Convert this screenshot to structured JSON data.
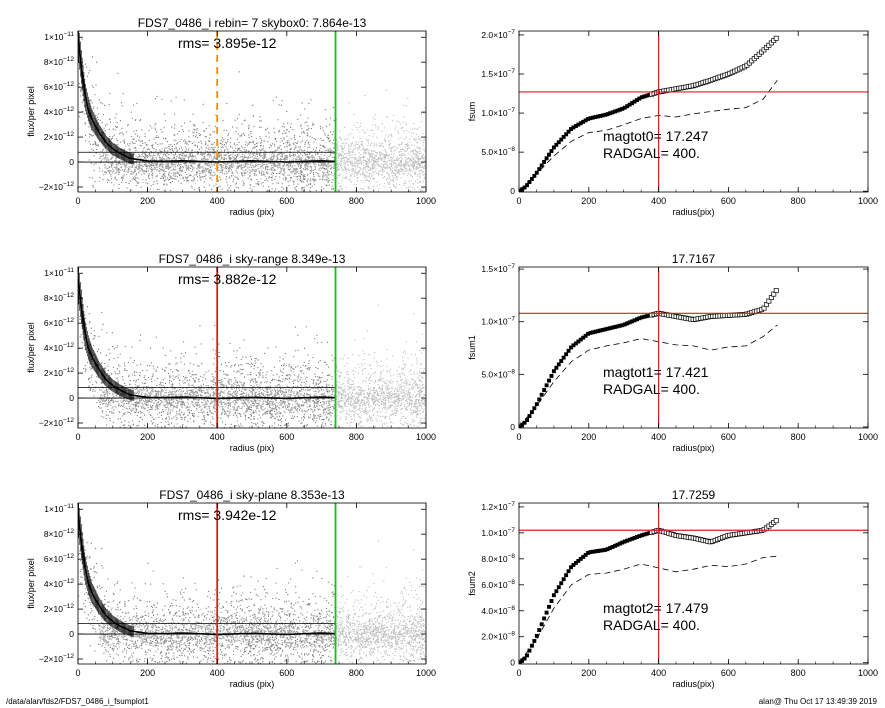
{
  "footer": {
    "left": "/data/alan/fds2/FDS7_0486_i_fsumplot1",
    "right": "alan@  Thu Oct 17 13:49:39 2019"
  },
  "chart_data": [
    {
      "type": "scatter",
      "id": "profile-1",
      "title": "FDS7_0486_i rebin= 7    skybox0:  7.864e-13",
      "annotation": "rms= 3.895e-12",
      "xlabel": "radius (pix)",
      "ylabel": "flux/per pixel",
      "xlim": [
        0,
        1000
      ],
      "ylim": [
        -2.4e-12,
        1.05e-11
      ],
      "xticks": [
        0,
        200,
        400,
        600,
        800,
        1000
      ],
      "xtick_labels": [
        "0",
        "200",
        "400",
        "600",
        "800",
        "1000"
      ],
      "yticks": [
        -2e-12,
        0,
        2e-12,
        4e-12,
        6e-12,
        8e-12,
        1e-11
      ],
      "ytick_labels": [
        {
          "m": "−2×10",
          "e": "−12"
        },
        {
          "m": "0",
          "e": ""
        },
        {
          "m": "2×10",
          "e": "−12"
        },
        {
          "m": "4×10",
          "e": "−12"
        },
        {
          "m": "6×10",
          "e": "−12"
        },
        {
          "m": "8×10",
          "e": "−12"
        },
        {
          "m": "1×10",
          "e": "−11"
        }
      ],
      "hlines": [
        0,
        7.864e-13
      ],
      "vlines": [
        {
          "x": 400,
          "color": "#ff8c00",
          "style": "dashed"
        },
        {
          "x": 740,
          "color": "#00cc00",
          "style": "solid"
        }
      ],
      "profile": {
        "x": [
          0,
          10,
          20,
          30,
          40,
          60,
          80,
          100,
          120,
          150,
          200,
          250,
          300,
          400,
          500,
          600,
          700,
          740
        ],
        "y": [
          1e-11,
          7.5e-12,
          5.4e-12,
          4.2e-12,
          3.4e-12,
          2.4e-12,
          1.6e-12,
          1.05e-12,
          7e-13,
          3e-13,
          8e-14,
          6e-14,
          1e-13,
          0,
          1e-13,
          0,
          1e-13,
          5e-14
        ]
      },
      "scatter_color": "#7a7a7a",
      "outer_color": "#bdbdbd",
      "grid": false
    },
    {
      "type": "scatter",
      "id": "growth-1",
      "title": "",
      "annotations": [
        "magtot0=  17.247",
        "RADGAL=    400."
      ],
      "xlabel": "radius(pix)",
      "ylabel": "fsum",
      "xlim": [
        0,
        1000
      ],
      "ylim": [
        -1e-09,
        2.05e-07
      ],
      "xticks": [
        0,
        200,
        400,
        600,
        800,
        1000
      ],
      "xtick_labels": [
        "0",
        "200",
        "400",
        "600",
        "800",
        "1000"
      ],
      "yticks": [
        0,
        5e-08,
        1e-07,
        1.5e-07,
        2e-07
      ],
      "ytick_labels": [
        {
          "m": "0",
          "e": ""
        },
        {
          "m": "5.0×10",
          "e": "−8"
        },
        {
          "m": "1.0×10",
          "e": "−7"
        },
        {
          "m": "1.5×10",
          "e": "−7"
        },
        {
          "m": "2.0×10",
          "e": "−7"
        }
      ],
      "ref_lines": {
        "x": 400,
        "y": 1.27e-07,
        "color": "#d62020"
      },
      "curve": {
        "x": [
          0,
          20,
          50,
          100,
          150,
          200,
          250,
          300,
          350,
          400,
          450,
          500,
          550,
          600,
          650,
          700,
          740
        ],
        "y": [
          0,
          6e-09,
          2.3e-08,
          5.6e-08,
          8e-08,
          9.3e-08,
          9.8e-08,
          1.06e-07,
          1.2e-07,
          1.27e-07,
          1.31e-07,
          1.35e-07,
          1.42e-07,
          1.5e-07,
          1.6e-07,
          1.8e-07,
          1.97e-07
        ]
      },
      "dashed": {
        "x": [
          0,
          50,
          100,
          150,
          200,
          250,
          300,
          350,
          400,
          450,
          500,
          550,
          600,
          650,
          700,
          740
        ],
        "y": [
          0,
          2.2e-08,
          4.5e-08,
          6.4e-08,
          7.5e-08,
          7.8e-08,
          8.5e-08,
          9.3e-08,
          9.7e-08,
          9.5e-08,
          9.9e-08,
          1.02e-07,
          1.05e-07,
          1.07e-07,
          1.18e-07,
          1.42e-07
        ]
      },
      "grid": false
    },
    {
      "type": "scatter",
      "id": "profile-2",
      "title": "FDS7_0486_i sky-range  8.349e-13",
      "annotation": "rms= 3.882e-12",
      "xlabel": "radius (pix)",
      "ylabel": "flux/per pixel",
      "xlim": [
        0,
        1000
      ],
      "ylim": [
        -2.4e-12,
        1.05e-11
      ],
      "xticks": [
        0,
        200,
        400,
        600,
        800,
        1000
      ],
      "xtick_labels": [
        "0",
        "200",
        "400",
        "600",
        "800",
        "1000"
      ],
      "yticks": [
        -2e-12,
        0,
        2e-12,
        4e-12,
        6e-12,
        8e-12,
        1e-11
      ],
      "ytick_labels": [
        {
          "m": "−2×10",
          "e": "−12"
        },
        {
          "m": "0",
          "e": ""
        },
        {
          "m": "2×10",
          "e": "−12"
        },
        {
          "m": "4×10",
          "e": "−12"
        },
        {
          "m": "6×10",
          "e": "−12"
        },
        {
          "m": "8×10",
          "e": "−12"
        },
        {
          "m": "1×10",
          "e": "−11"
        }
      ],
      "hlines": [
        0,
        8.349e-13
      ],
      "vlines": [
        {
          "x": 400,
          "color": "#d62020",
          "style": "solid"
        },
        {
          "x": 740,
          "color": "#00cc00",
          "style": "solid"
        }
      ],
      "profile": {
        "x": [
          0,
          10,
          20,
          30,
          40,
          60,
          80,
          100,
          120,
          150,
          200,
          250,
          300,
          400,
          500,
          600,
          700,
          740
        ],
        "y": [
          9.5e-12,
          7.2e-12,
          5.2e-12,
          4e-12,
          3.3e-12,
          2.3e-12,
          1.5e-12,
          1e-12,
          6.5e-13,
          2.5e-13,
          5e-14,
          3e-14,
          8e-14,
          -3e-14,
          5e-14,
          -3e-14,
          8e-14,
          3e-14
        ]
      },
      "scatter_color": "#7a7a7a",
      "outer_color": "#bdbdbd",
      "grid": false
    },
    {
      "type": "scatter",
      "id": "growth-2",
      "title": "17.7167",
      "annotations": [
        "magtot1=  17.421",
        "RADGAL=    400."
      ],
      "xlabel": "radius(pix)",
      "ylabel": "fsum1",
      "xlim": [
        0,
        1000
      ],
      "ylim": [
        -1e-09,
        1.52e-07
      ],
      "xticks": [
        0,
        200,
        400,
        600,
        800,
        1000
      ],
      "xtick_labels": [
        "0",
        "200",
        "400",
        "600",
        "800",
        "1000"
      ],
      "yticks": [
        0,
        5e-08,
        1e-07,
        1.5e-07
      ],
      "ytick_labels": [
        {
          "m": "0",
          "e": ""
        },
        {
          "m": "5.0×10",
          "e": "−8"
        },
        {
          "m": "1.0×10",
          "e": "−7"
        },
        {
          "m": "1.5×10",
          "e": "−7"
        }
      ],
      "ref_lines": {
        "x": 400,
        "y": 1.08e-07,
        "color": "#d62020"
      },
      "curve": {
        "x": [
          0,
          20,
          50,
          100,
          150,
          200,
          250,
          300,
          350,
          400,
          450,
          500,
          550,
          600,
          650,
          700,
          740
        ],
        "y": [
          0,
          5e-09,
          2.1e-08,
          5.3e-08,
          7.6e-08,
          8.9e-08,
          9.3e-08,
          9.7e-08,
          1.04e-07,
          1.08e-07,
          1.05e-07,
          1.02e-07,
          1.05e-07,
          1.06e-07,
          1.07e-07,
          1.12e-07,
          1.31e-07
        ]
      },
      "dashed": {
        "x": [
          0,
          50,
          100,
          150,
          200,
          250,
          300,
          350,
          400,
          450,
          500,
          550,
          600,
          650,
          700,
          740
        ],
        "y": [
          0,
          2e-08,
          4.3e-08,
          6.2e-08,
          7.3e-08,
          7.7e-08,
          8e-08,
          8.4e-08,
          8.1e-08,
          7.8e-08,
          7.7e-08,
          7.3e-08,
          7.6e-08,
          7.7e-08,
          8.6e-08,
          9.7e-08
        ]
      },
      "grid": false
    },
    {
      "type": "scatter",
      "id": "profile-3",
      "title": "FDS7_0486_i sky-plane  8.353e-13",
      "annotation": "rms= 3.942e-12",
      "xlabel": "radius (pix)",
      "ylabel": "flux/per pixel",
      "xlim": [
        0,
        1000
      ],
      "ylim": [
        -2.4e-12,
        1.05e-11
      ],
      "xticks": [
        0,
        200,
        400,
        600,
        800,
        1000
      ],
      "xtick_labels": [
        "0",
        "200",
        "400",
        "600",
        "800",
        "1000"
      ],
      "yticks": [
        -2e-12,
        0,
        2e-12,
        4e-12,
        6e-12,
        8e-12,
        1e-11
      ],
      "ytick_labels": [
        {
          "m": "−2×10",
          "e": "−12"
        },
        {
          "m": "0",
          "e": ""
        },
        {
          "m": "2×10",
          "e": "−12"
        },
        {
          "m": "4×10",
          "e": "−12"
        },
        {
          "m": "6×10",
          "e": "−12"
        },
        {
          "m": "8×10",
          "e": "−12"
        },
        {
          "m": "1×10",
          "e": "−11"
        }
      ],
      "hlines": [
        0,
        8.353e-13
      ],
      "vlines": [
        {
          "x": 400,
          "color": "#d62020",
          "style": "solid"
        },
        {
          "x": 740,
          "color": "#00cc00",
          "style": "solid"
        }
      ],
      "profile": {
        "x": [
          0,
          10,
          20,
          30,
          40,
          60,
          80,
          100,
          120,
          150,
          200,
          250,
          300,
          400,
          500,
          600,
          700,
          740
        ],
        "y": [
          9.7e-12,
          7.3e-12,
          5.3e-12,
          4.1e-12,
          3.3e-12,
          2.3e-12,
          1.5e-12,
          1e-12,
          6.5e-13,
          2.5e-13,
          5e-14,
          3e-14,
          8e-14,
          -3e-14,
          5e-14,
          -3e-14,
          8e-14,
          3e-14
        ]
      },
      "scatter_color": "#7a7a7a",
      "outer_color": "#bdbdbd",
      "grid": false
    },
    {
      "type": "scatter",
      "id": "growth-3",
      "title": "17.7259",
      "annotations": [
        "magtot2=  17.479",
        "RADGAL=    400."
      ],
      "xlabel": "radius(pix)",
      "ylabel": "fsum2",
      "xlim": [
        0,
        1000
      ],
      "ylim": [
        -1e-09,
        1.23e-07
      ],
      "xticks": [
        0,
        200,
        400,
        600,
        800,
        1000
      ],
      "xtick_labels": [
        "0",
        "200",
        "400",
        "600",
        "800",
        "1000"
      ],
      "yticks": [
        0,
        2e-08,
        4e-08,
        6e-08,
        8e-08,
        1e-07,
        1.2e-07
      ],
      "ytick_labels": [
        {
          "m": "0",
          "e": ""
        },
        {
          "m": "2.0×10",
          "e": "−8"
        },
        {
          "m": "4.0×10",
          "e": "−8"
        },
        {
          "m": "6.0×10",
          "e": "−8"
        },
        {
          "m": "8.0×10",
          "e": "−8"
        },
        {
          "m": "1.0×10",
          "e": "−7"
        },
        {
          "m": "1.2×10",
          "e": "−7"
        }
      ],
      "ref_lines": {
        "x": 400,
        "y": 1.02e-07,
        "color": "#d62020"
      },
      "curve": {
        "x": [
          0,
          20,
          50,
          100,
          150,
          200,
          250,
          300,
          350,
          400,
          450,
          500,
          550,
          600,
          650,
          700,
          740
        ],
        "y": [
          0,
          4e-09,
          2e-08,
          5.2e-08,
          7.4e-08,
          8.5e-08,
          8.7e-08,
          9.3e-08,
          9.8e-08,
          1.02e-07,
          9.8e-08,
          9.6e-08,
          9.3e-08,
          9.8e-08,
          1e-07,
          1.02e-07,
          1.1e-07
        ]
      },
      "dashed": {
        "x": [
          0,
          50,
          100,
          150,
          200,
          250,
          300,
          350,
          400,
          450,
          500,
          550,
          600,
          650,
          700,
          740
        ],
        "y": [
          0,
          1.8e-08,
          4.2e-08,
          6e-08,
          6.8e-08,
          6.9e-08,
          7.2e-08,
          7.6e-08,
          7.3e-08,
          7e-08,
          7.2e-08,
          7.5e-08,
          7.4e-08,
          7.6e-08,
          8.1e-08,
          8.2e-08
        ]
      },
      "grid": false
    }
  ]
}
